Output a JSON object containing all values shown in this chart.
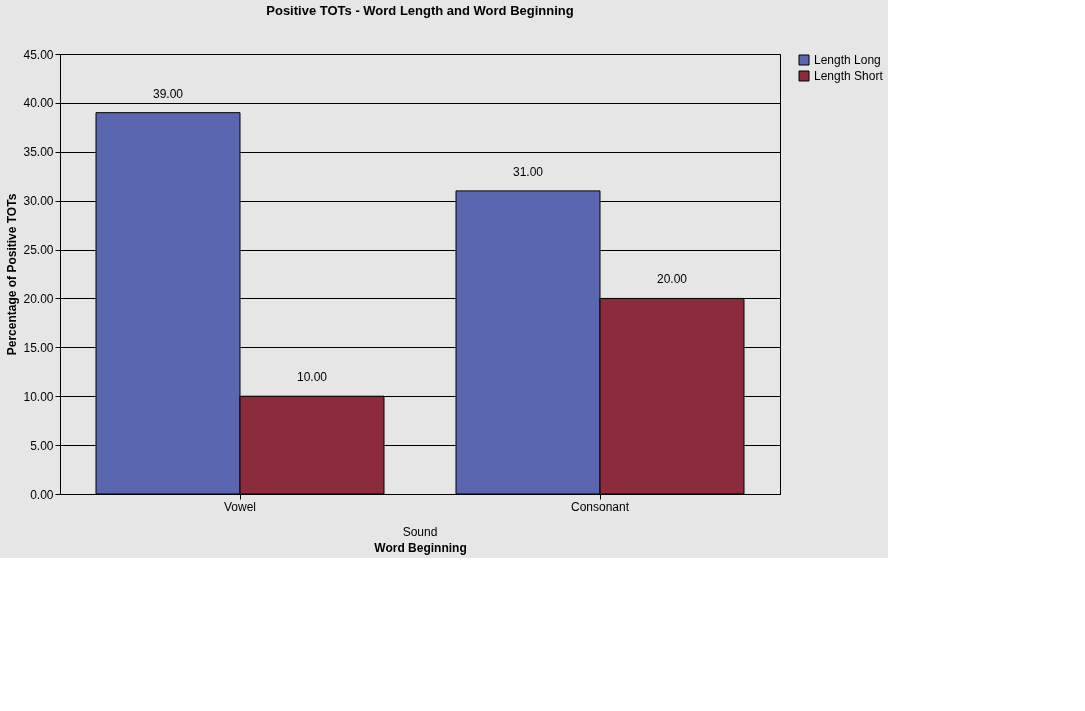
{
  "chart_data": {
    "type": "bar",
    "title": "Positive TOTs - Word Length and Word Beginning",
    "xlabel": "Word Beginning",
    "ylabel": "Percentage of Positive TOTs",
    "categories": [
      "Vowel",
      "Consonant"
    ],
    "series": [
      {
        "name": "Length Long",
        "color": "#5b66b0",
        "values": [
          39,
          31
        ],
        "value_labels": [
          "39.00",
          "31.00"
        ]
      },
      {
        "name": "Length Short",
        "color": "#8c2b3c",
        "values": [
          10,
          20
        ],
        "value_labels": [
          "10.00",
          "20.00"
        ]
      }
    ],
    "ylim": [
      0,
      45
    ],
    "yticks": [
      {
        "value": 0,
        "label": "0.00"
      },
      {
        "value": 5,
        "label": "5.00"
      },
      {
        "value": 10,
        "label": "10.00"
      },
      {
        "value": 15,
        "label": "15.00"
      },
      {
        "value": 20,
        "label": "20.00"
      },
      {
        "value": 25,
        "label": "25.00"
      },
      {
        "value": 30,
        "label": "30.00"
      },
      {
        "value": 35,
        "label": "35.00"
      },
      {
        "value": 40,
        "label": "40.00"
      },
      {
        "value": 45,
        "label": "45.00"
      }
    ],
    "annotations": [
      "Sound"
    ],
    "grid": "y",
    "legend": "right"
  }
}
